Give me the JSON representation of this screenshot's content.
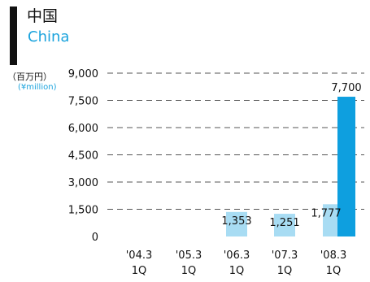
{
  "header": {
    "title_ja": "中国",
    "title_en": "China",
    "unit_ja": "（百万円）",
    "unit_en": "(¥million)"
  },
  "chart_data": {
    "type": "bar",
    "categories": [
      {
        "line1": "'04.3",
        "line2": "1Q"
      },
      {
        "line1": "'05.3",
        "line2": "1Q"
      },
      {
        "line1": "'06.3",
        "line2": "1Q"
      },
      {
        "line1": "'07.3",
        "line2": "1Q"
      },
      {
        "line1": "'08.3",
        "line2": "1Q"
      }
    ],
    "series": [
      {
        "values": [
          null,
          null,
          1353,
          1251,
          1777
        ],
        "color": "#a8dcf3"
      },
      {
        "values": [
          null,
          null,
          null,
          null,
          7700
        ],
        "color": "#0e9fdf"
      }
    ],
    "data_labels": [
      "",
      "",
      "1,353",
      "1,251",
      "1,777"
    ],
    "peak_label": "7,700",
    "y_ticks": [
      "0",
      "1,500",
      "3,000",
      "4,500",
      "6,000",
      "7,500",
      "9,000"
    ],
    "ylim": [
      0,
      9000
    ],
    "grid": "dashed"
  }
}
